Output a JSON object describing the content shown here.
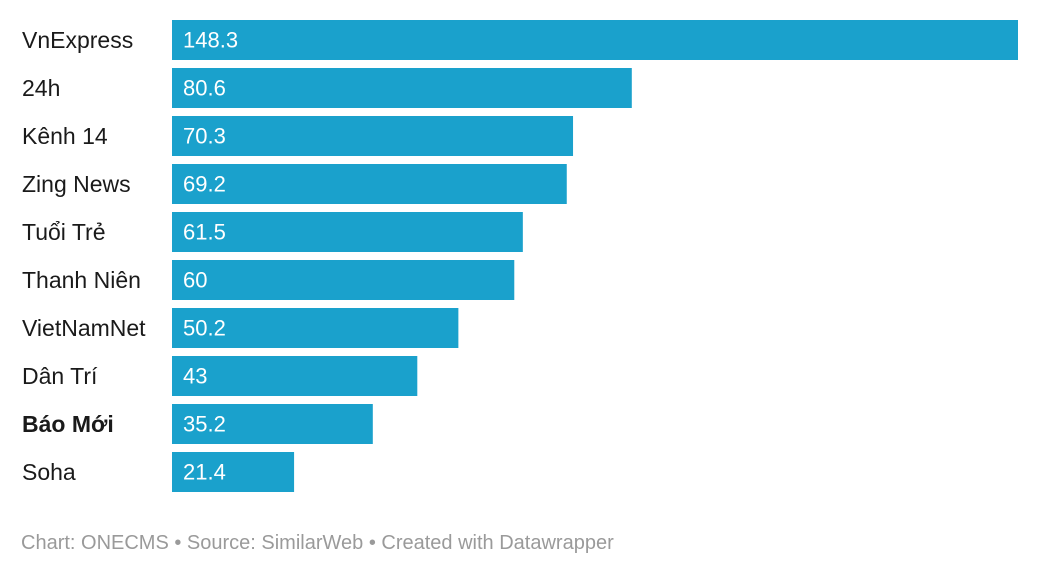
{
  "chart_data": {
    "type": "bar",
    "orientation": "horizontal",
    "categories": [
      "VnExpress",
      "24h",
      "Kênh 14",
      "Zing News",
      "Tuổi Trẻ",
      "Thanh Niên",
      "VietNamNet",
      "Dân Trí",
      "Báo Mới",
      "Soha"
    ],
    "values": [
      148.3,
      80.6,
      70.3,
      69.2,
      61.5,
      60,
      50.2,
      43,
      35.2,
      21.4
    ],
    "value_labels": [
      "148.3",
      "80.6",
      "70.3",
      "69.2",
      "61.5",
      "60",
      "50.2",
      "43",
      "35.2",
      "21.4"
    ],
    "highlighted_category": "Báo Mới",
    "bar_color": "#1aa1cc",
    "xlim": [
      0,
      148.3
    ],
    "grid": false,
    "legend": "none",
    "title": "",
    "xlabel": "",
    "ylabel": ""
  },
  "footer": {
    "text": "Chart: ONECMS • Source: SimilarWeb • Created with Datawrapper"
  }
}
